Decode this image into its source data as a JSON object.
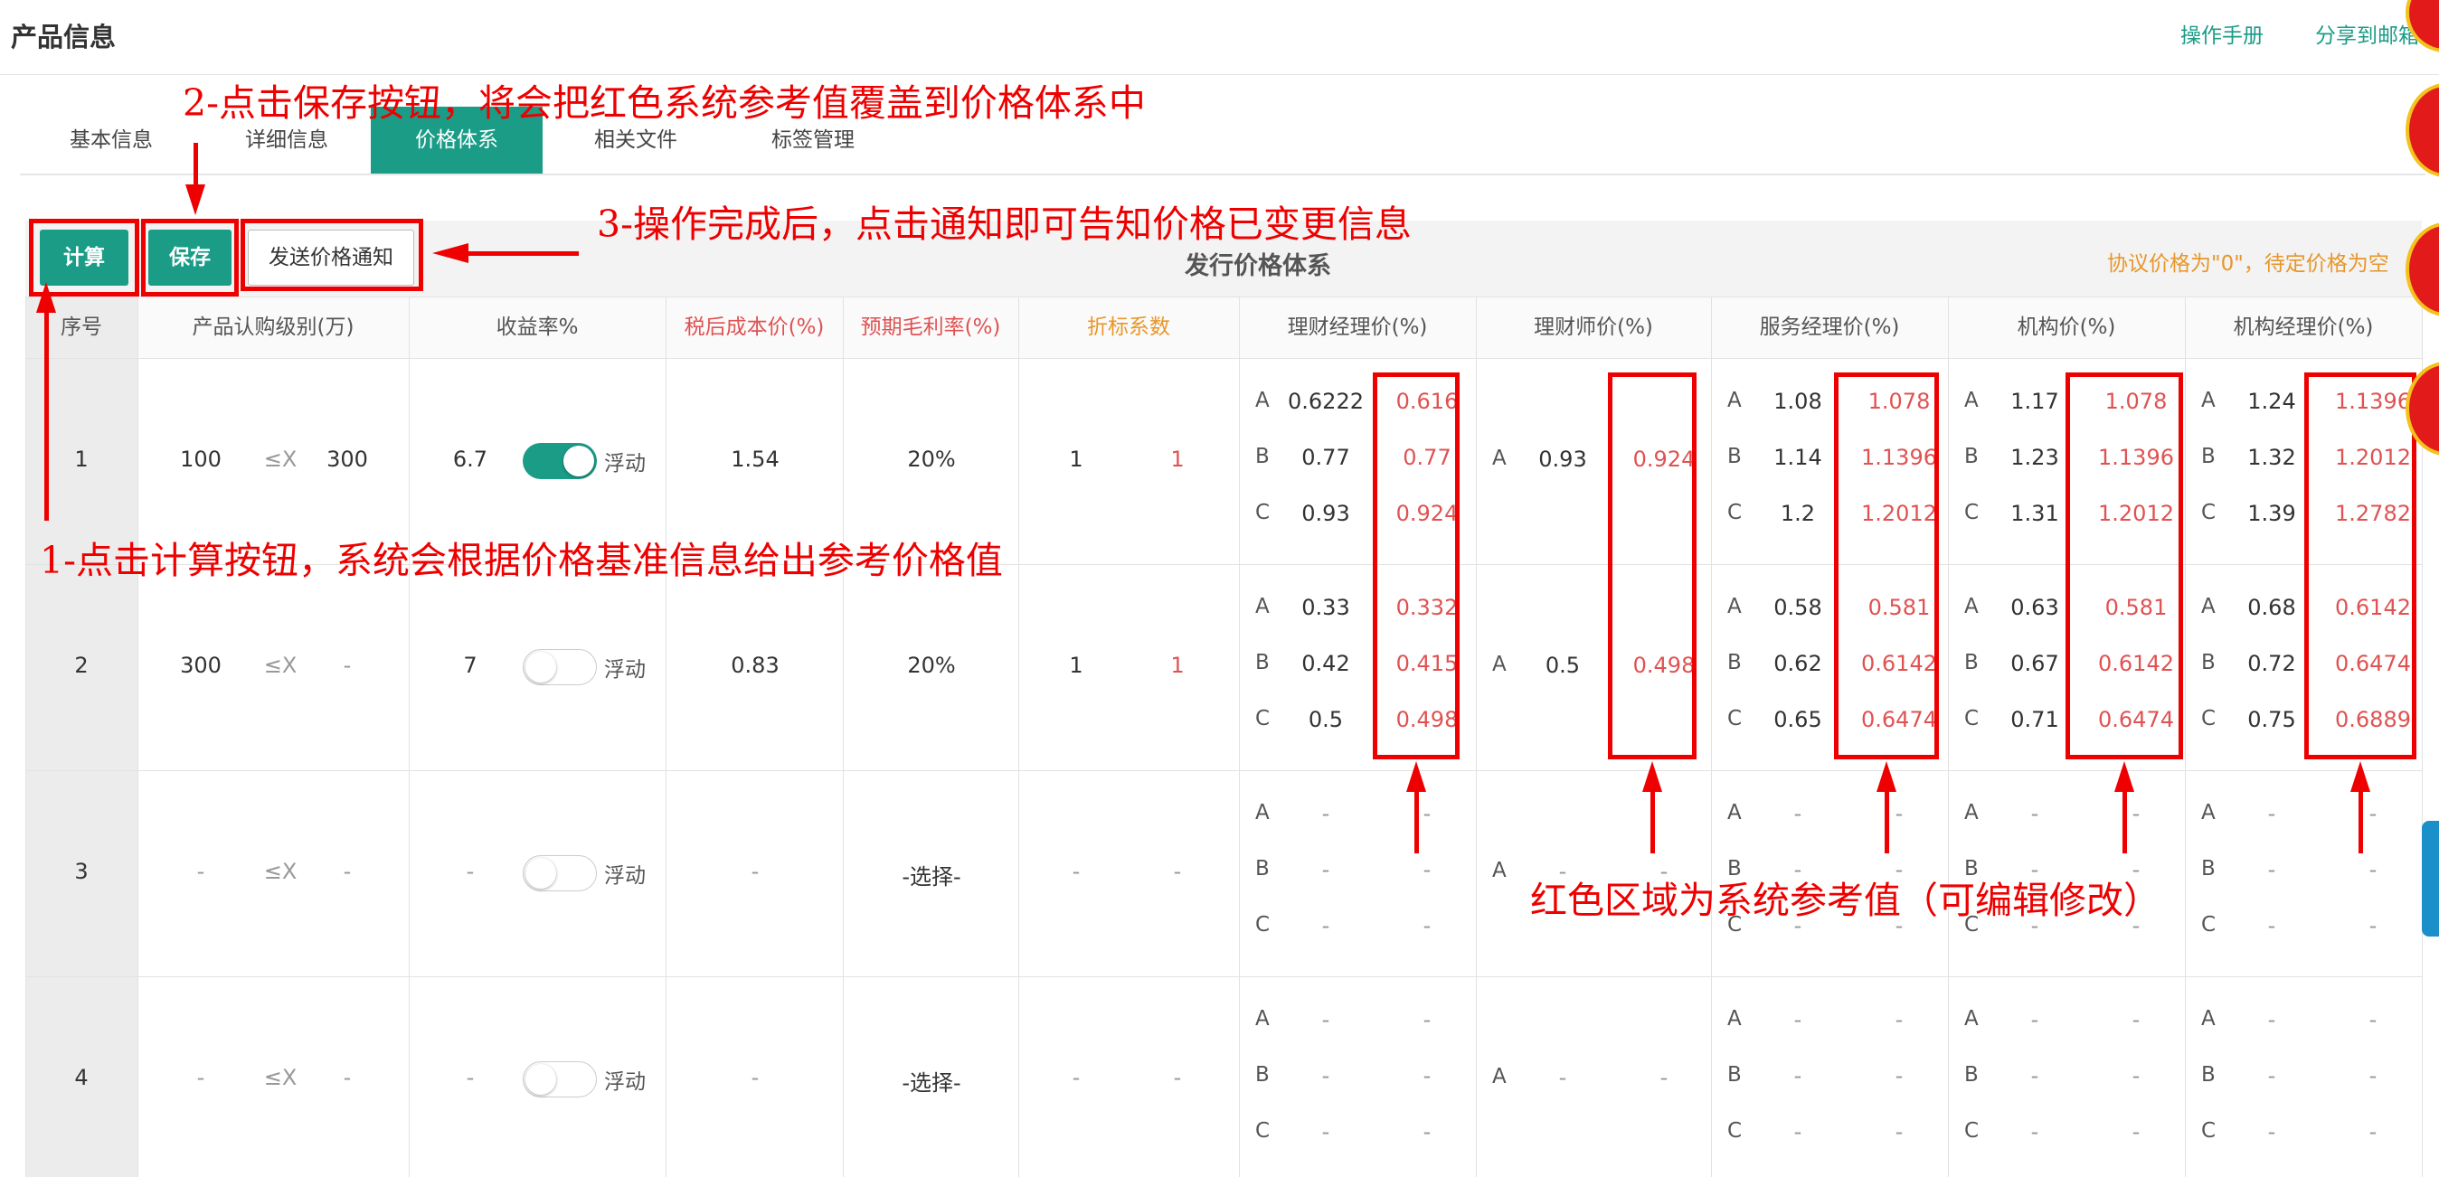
{
  "header": {
    "title": "产品信息",
    "manual_link": "操作手册",
    "share_link": "分享到邮箱"
  },
  "tabs": [
    "基本信息",
    "详细信息",
    "价格体系",
    "相关文件",
    "标签管理"
  ],
  "toolbar": {
    "calc_button": "计算",
    "save_button": "保存",
    "notify_button": "发送价格通知",
    "section_title": "发行价格体系",
    "hint": "协议价格为\"0\"，待定价格为空"
  },
  "table": {
    "headers": [
      "序号",
      "产品认购级别(万)",
      "收益率%",
      "税后成本价(%)",
      "预期毛利率(%)",
      "折标系数",
      "理财经理价(%)",
      "理财师价(%)",
      "服务经理价(%)",
      "机构价(%)",
      "机构经理价(%)"
    ],
    "le_x": "≤X",
    "float_label": "浮动",
    "select_placeholder": "-选择-",
    "rows": [
      {
        "seq": "1",
        "min": "100",
        "max": "300",
        "rate": "6.7",
        "float_on": true,
        "cost": "1.54",
        "margin": "20%",
        "coef": "1",
        "coef_ref": "1",
        "mgr": [
          [
            "A",
            "0.6222",
            "0.616"
          ],
          [
            "B",
            "0.77",
            "0.77"
          ],
          [
            "C",
            "0.93",
            "0.924"
          ]
        ],
        "planner": [
          "A",
          "0.93",
          "0.924"
        ],
        "svc": [
          [
            "A",
            "1.08",
            "1.078"
          ],
          [
            "B",
            "1.14",
            "1.1396"
          ],
          [
            "C",
            "1.2",
            "1.2012"
          ]
        ],
        "inst": [
          [
            "A",
            "1.17",
            "1.078"
          ],
          [
            "B",
            "1.23",
            "1.1396"
          ],
          [
            "C",
            "1.31",
            "1.2012"
          ]
        ],
        "instmgr": [
          [
            "A",
            "1.24",
            "1.1396"
          ],
          [
            "B",
            "1.32",
            "1.2012"
          ],
          [
            "C",
            "1.39",
            "1.2782"
          ]
        ]
      },
      {
        "seq": "2",
        "min": "300",
        "max": "-",
        "rate": "7",
        "float_on": false,
        "cost": "0.83",
        "margin": "20%",
        "coef": "1",
        "coef_ref": "1",
        "mgr": [
          [
            "A",
            "0.33",
            "0.332"
          ],
          [
            "B",
            "0.42",
            "0.415"
          ],
          [
            "C",
            "0.5",
            "0.498"
          ]
        ],
        "planner": [
          "A",
          "0.5",
          "0.498"
        ],
        "svc": [
          [
            "A",
            "0.58",
            "0.581"
          ],
          [
            "B",
            "0.62",
            "0.6142"
          ],
          [
            "C",
            "0.65",
            "0.6474"
          ]
        ],
        "inst": [
          [
            "A",
            "0.63",
            "0.581"
          ],
          [
            "B",
            "0.67",
            "0.6142"
          ],
          [
            "C",
            "0.71",
            "0.6474"
          ]
        ],
        "instmgr": [
          [
            "A",
            "0.68",
            "0.6142"
          ],
          [
            "B",
            "0.72",
            "0.6474"
          ],
          [
            "C",
            "0.75",
            "0.6889"
          ]
        ]
      },
      {
        "seq": "3",
        "min": "-",
        "max": "-",
        "rate": "-",
        "float_on": false,
        "cost": "-",
        "margin": "-选择-",
        "coef": "-",
        "coef_ref": "-",
        "mgr": [
          [
            "A",
            "-",
            "-"
          ],
          [
            "B",
            "-",
            "-"
          ],
          [
            "C",
            "-",
            "-"
          ]
        ],
        "planner": [
          "A",
          "-",
          "-"
        ],
        "svc": [
          [
            "A",
            "-",
            "-"
          ],
          [
            "B",
            "-",
            "-"
          ],
          [
            "C",
            "-",
            "-"
          ]
        ],
        "inst": [
          [
            "A",
            "-",
            "-"
          ],
          [
            "B",
            "-",
            "-"
          ],
          [
            "C",
            "-",
            "-"
          ]
        ],
        "instmgr": [
          [
            "A",
            "-",
            "-"
          ],
          [
            "B",
            "-",
            "-"
          ],
          [
            "C",
            "-",
            "-"
          ]
        ]
      },
      {
        "seq": "4",
        "min": "-",
        "max": "-",
        "rate": "-",
        "float_on": false,
        "cost": "-",
        "margin": "-选择-",
        "coef": "-",
        "coef_ref": "-",
        "mgr": [
          [
            "A",
            "-",
            "-"
          ],
          [
            "B",
            "-",
            "-"
          ],
          [
            "C",
            "-",
            "-"
          ]
        ],
        "planner": [
          "A",
          "-",
          "-"
        ],
        "svc": [
          [
            "A",
            "-",
            "-"
          ],
          [
            "B",
            "-",
            "-"
          ],
          [
            "C",
            "-",
            "-"
          ]
        ],
        "inst": [
          [
            "A",
            "-",
            "-"
          ],
          [
            "B",
            "-",
            "-"
          ],
          [
            "C",
            "-",
            "-"
          ]
        ],
        "instmgr": [
          [
            "A",
            "-",
            "-"
          ],
          [
            "B",
            "-",
            "-"
          ],
          [
            "C",
            "-",
            "-"
          ]
        ]
      }
    ]
  },
  "annotations": {
    "step1": "1-点击计算按钮，系统会根据价格基准信息给出参考价格值",
    "step2": "2-点击保存按钮，将会把红色系统参考值覆盖到价格体系中",
    "step3": "3-操作完成后，点击通知即可告知价格已变更信息",
    "red_area": "红色区域为系统参考值（可编辑修改）"
  },
  "colors": {
    "primary": "#1a9c87",
    "reference_red": "#e05252",
    "annotation_red": "#ee0000",
    "hint_orange": "#e8962a"
  }
}
